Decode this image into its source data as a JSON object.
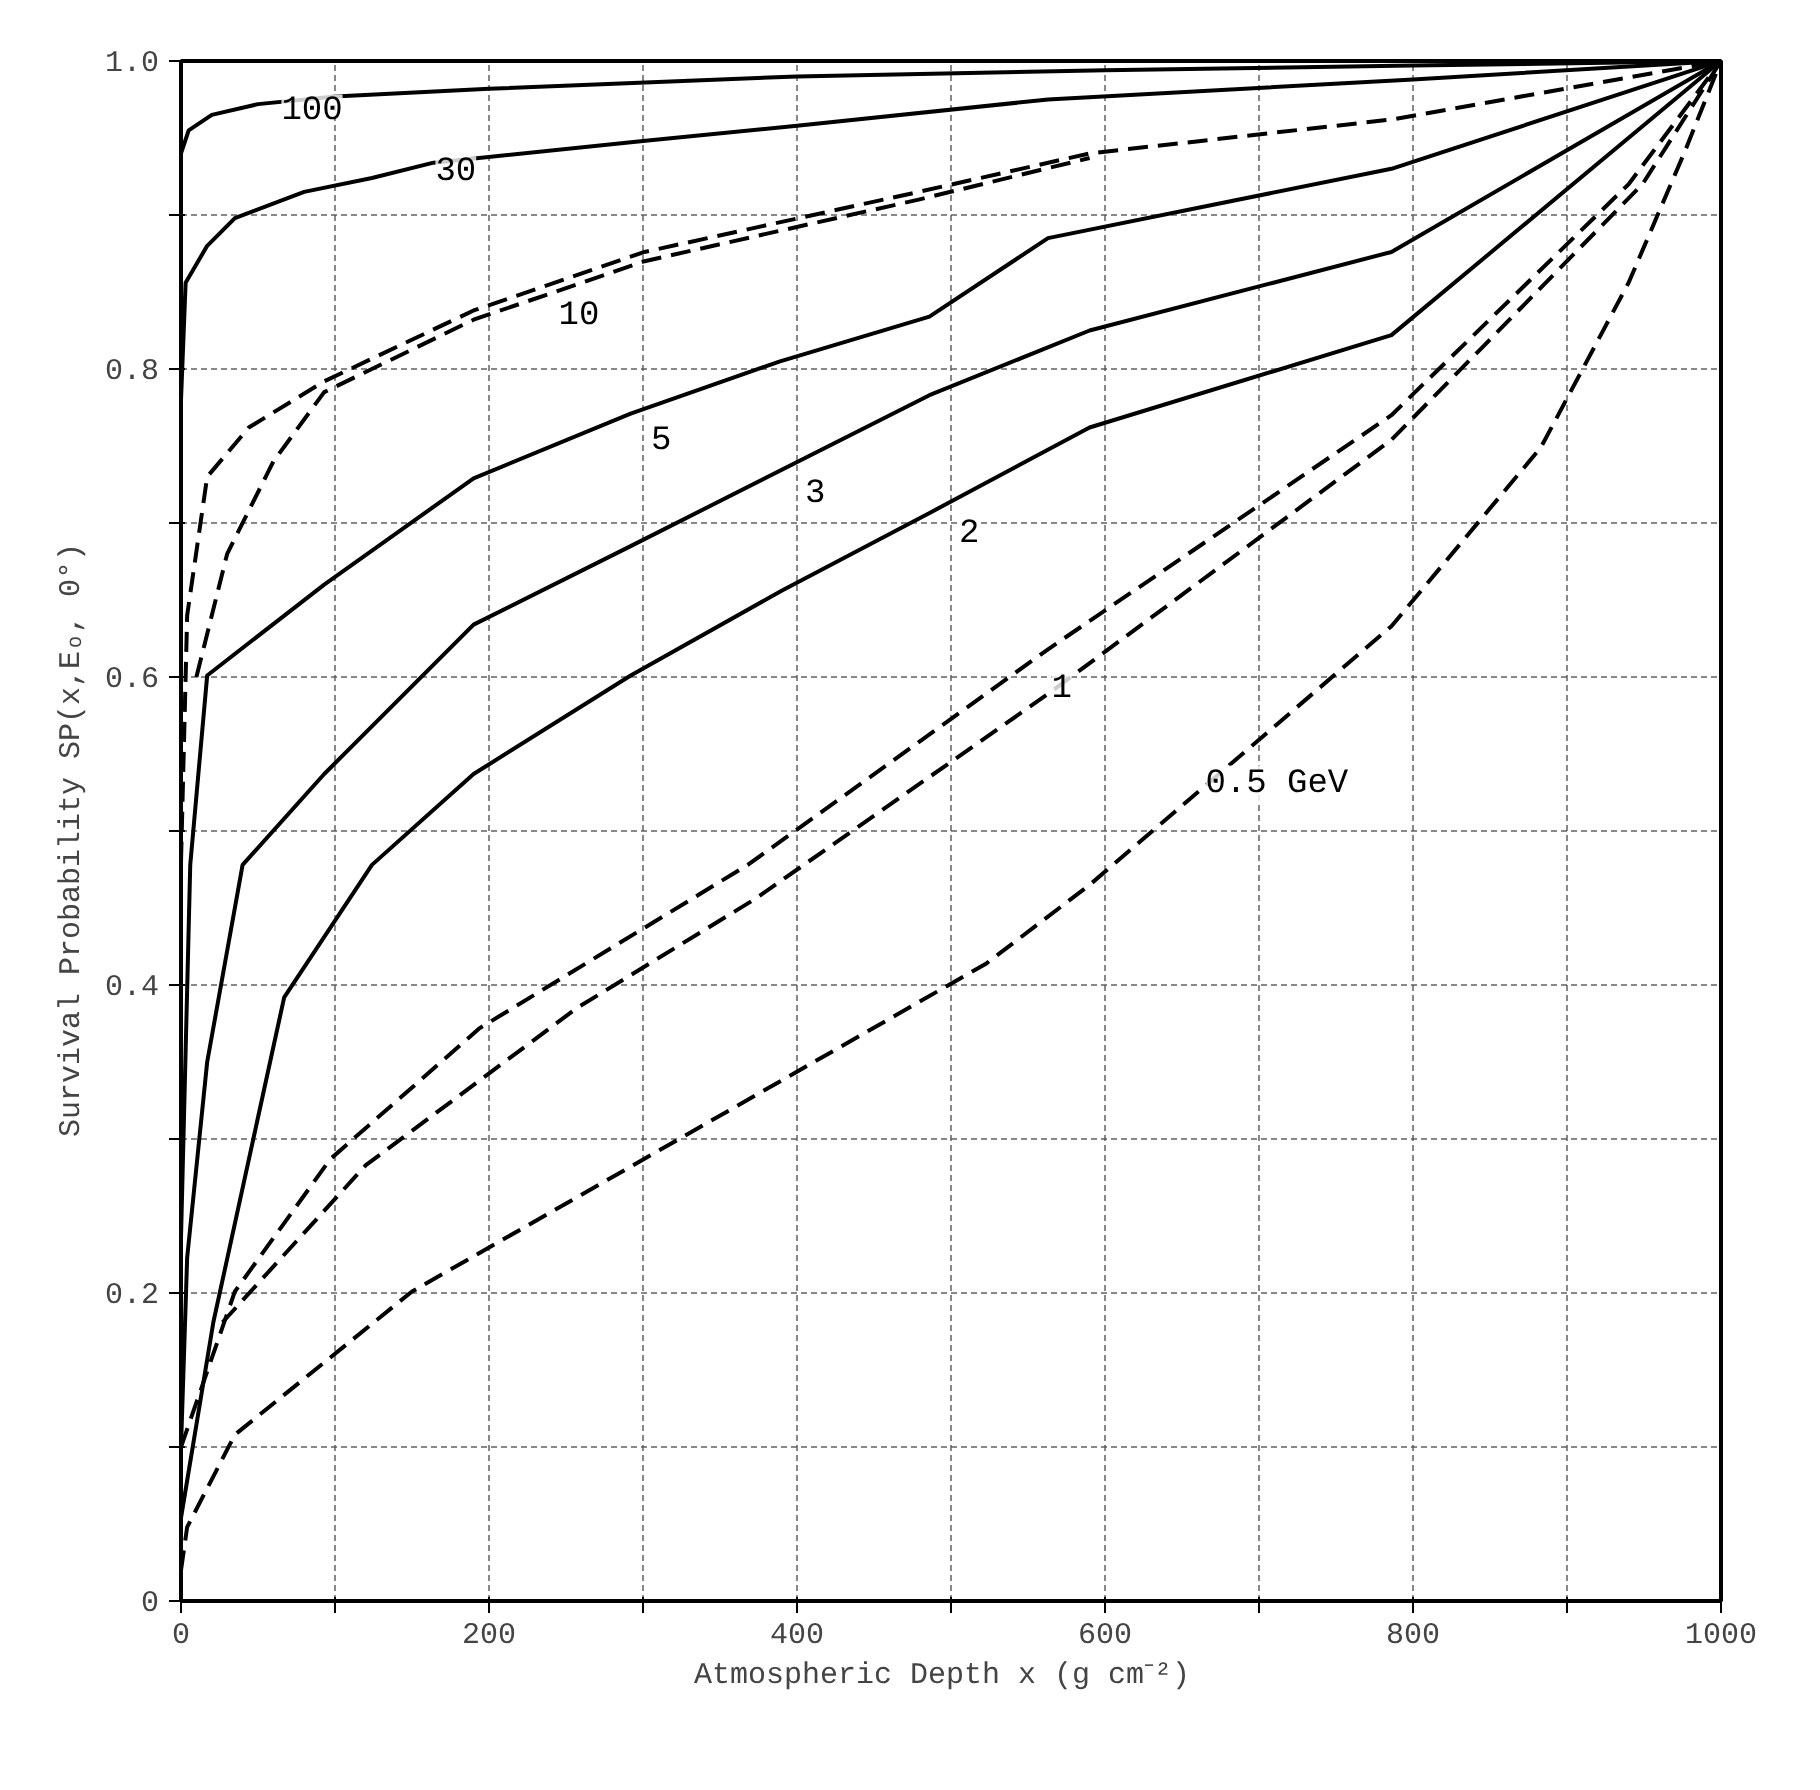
{
  "chart_data": {
    "type": "line",
    "xlabel": "Atmospheric Depth x  (g cm⁻²)",
    "ylabel": "Survival Probability  SP(x,Eₒ, 0°)",
    "xlim": [
      0,
      1000
    ],
    "ylim": [
      0,
      1.0
    ],
    "xticks": [
      0,
      {
        "value": 100,
        "label": null
      },
      200,
      {
        "value": 300,
        "label": null
      },
      400,
      {
        "value": 500,
        "label": null
      },
      600,
      {
        "value": 700,
        "label": null
      },
      800,
      {
        "value": 900,
        "label": null
      },
      1000
    ],
    "yticks": [
      {
        "value": 0,
        "label": "0"
      },
      {
        "value": 0.1,
        "label": null
      },
      {
        "value": 0.2,
        "label": "0.2"
      },
      {
        "value": 0.3,
        "label": null
      },
      {
        "value": 0.4,
        "label": "0.4"
      },
      {
        "value": 0.5,
        "label": null
      },
      {
        "value": 0.6,
        "label": "0.6"
      },
      {
        "value": 0.7,
        "label": null
      },
      {
        "value": 0.8,
        "label": "0.8"
      },
      {
        "value": 0.9,
        "label": null
      },
      {
        "value": 1.0,
        "label": "1.0"
      }
    ],
    "grid": true,
    "marker": "none",
    "series": [
      {
        "name": "100",
        "color": "#000000",
        "line_style": "solid",
        "x": [
          0,
          5,
          20,
          50,
          100,
          200,
          400,
          600,
          800,
          1000
        ],
        "values": [
          0.94,
          0.955,
          0.965,
          0.972,
          0.977,
          0.982,
          0.99,
          0.994,
          0.997,
          1.0
        ]
      },
      {
        "name": "30",
        "color": "#000000",
        "line_style": "solid",
        "x": [
          0,
          3,
          17,
          35,
          80,
          124,
          164,
          300,
          400,
          563,
          800,
          1000
        ],
        "values": [
          0.78,
          0.856,
          0.88,
          0.898,
          0.915,
          0.924,
          0.934,
          0.948,
          0.958,
          0.975,
          0.988,
          1.0
        ]
      },
      {
        "name": "10",
        "color": "#000000",
        "line_style": "dashed",
        "x": [
          0,
          4,
          17,
          44,
          93,
          190,
          301,
          479,
          590,
          786,
          1000
        ],
        "values": [
          0.48,
          0.64,
          0.73,
          0.762,
          0.792,
          0.838,
          0.876,
          0.915,
          0.94,
          0.962,
          1.0
        ]
      },
      {
        "color": "#000000",
        "line_style": "dashed",
        "x": [
          10,
          30,
          60,
          93,
          190,
          301,
          479,
          590
        ],
        "values": [
          0.6,
          0.68,
          0.74,
          0.785,
          0.832,
          0.87,
          0.91,
          0.937
        ]
      },
      {
        "name": "5",
        "color": "#000000",
        "line_style": "solid",
        "x": [
          0,
          6,
          17,
          93,
          190,
          292,
          389,
          486,
          563,
          786,
          1000
        ],
        "values": [
          0.236,
          0.478,
          0.601,
          0.66,
          0.729,
          0.771,
          0.805,
          0.834,
          0.885,
          0.93,
          1.0
        ]
      },
      {
        "name": "3",
        "color": "#000000",
        "line_style": "solid",
        "x": [
          0,
          4,
          17,
          40,
          93,
          190,
          292,
          486,
          590,
          786,
          1000
        ],
        "values": [
          0.1,
          0.223,
          0.35,
          0.478,
          0.537,
          0.634,
          0.685,
          0.783,
          0.825,
          0.876,
          1.0
        ]
      },
      {
        "name": "2",
        "color": "#000000",
        "line_style": "solid",
        "x": [
          0,
          21,
          67,
          124,
          190,
          292,
          390,
          487,
          590,
          786,
          1000
        ],
        "values": [
          0.054,
          0.181,
          0.392,
          0.478,
          0.537,
          0.601,
          0.656,
          0.707,
          0.762,
          0.822,
          1.0
        ]
      },
      {
        "name": "1",
        "color": "#000000",
        "line_style": "dashed",
        "x": [
          0,
          35,
          97,
          194,
          368,
          563,
          786,
          940,
          1000
        ],
        "values": [
          0.1,
          0.201,
          0.287,
          0.372,
          0.478,
          0.618,
          0.77,
          0.92,
          1.0
        ]
      },
      {
        "color": "#000000",
        "line_style": "dashed",
        "x": [
          27,
          120,
          257,
          373,
          563,
          786,
          949,
          1000
        ],
        "values": [
          0.181,
          0.283,
          0.385,
          0.456,
          0.589,
          0.754,
          0.92,
          1.0
        ]
      },
      {
        "name": "0.5 GeV",
        "color": "#000000",
        "line_style": "dashed",
        "x": [
          0,
          4,
          35,
          150,
          390,
          523,
          590,
          786,
          883,
          940,
          976,
          1000
        ],
        "values": [
          0.02,
          0.048,
          0.108,
          0.201,
          0.338,
          0.414,
          0.465,
          0.633,
          0.749,
          0.856,
          0.94,
          1.0
        ]
      }
    ]
  }
}
